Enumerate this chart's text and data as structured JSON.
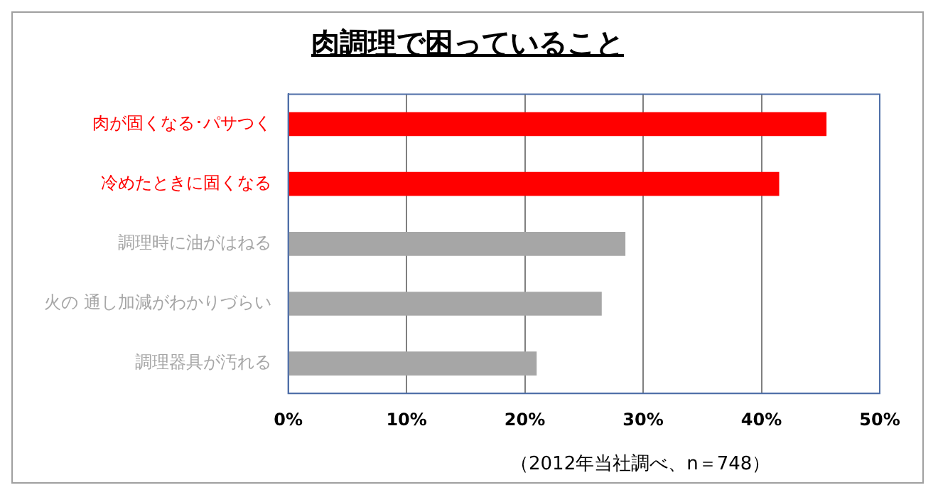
{
  "chart_data": {
    "type": "bar",
    "orientation": "horizontal",
    "title": "肉調理で困っていること",
    "categories": [
      "肉が固くなる･パサつく",
      "冷めたときに固くなる",
      "調理時に油がはねる",
      "火の 通し加減がわかりづらい",
      "調理器具が汚れる"
    ],
    "values": [
      45.5,
      41.5,
      28.5,
      26.5,
      21
    ],
    "colors": [
      "#ff0000",
      "#ff0000",
      "#a6a6a6",
      "#a6a6a6",
      "#a6a6a6"
    ],
    "xlim": [
      0,
      50
    ],
    "xticks": [
      {
        "value": 0,
        "label": "0%"
      },
      {
        "value": 10,
        "label": "10%"
      },
      {
        "value": 20,
        "label": "20%"
      },
      {
        "value": 30,
        "label": "30%"
      },
      {
        "value": 40,
        "label": "40%"
      },
      {
        "value": 50,
        "label": "50%"
      }
    ],
    "grid": "x",
    "legend": false,
    "annotations": [
      "（2012年当社調べ、n＝748）"
    ]
  }
}
